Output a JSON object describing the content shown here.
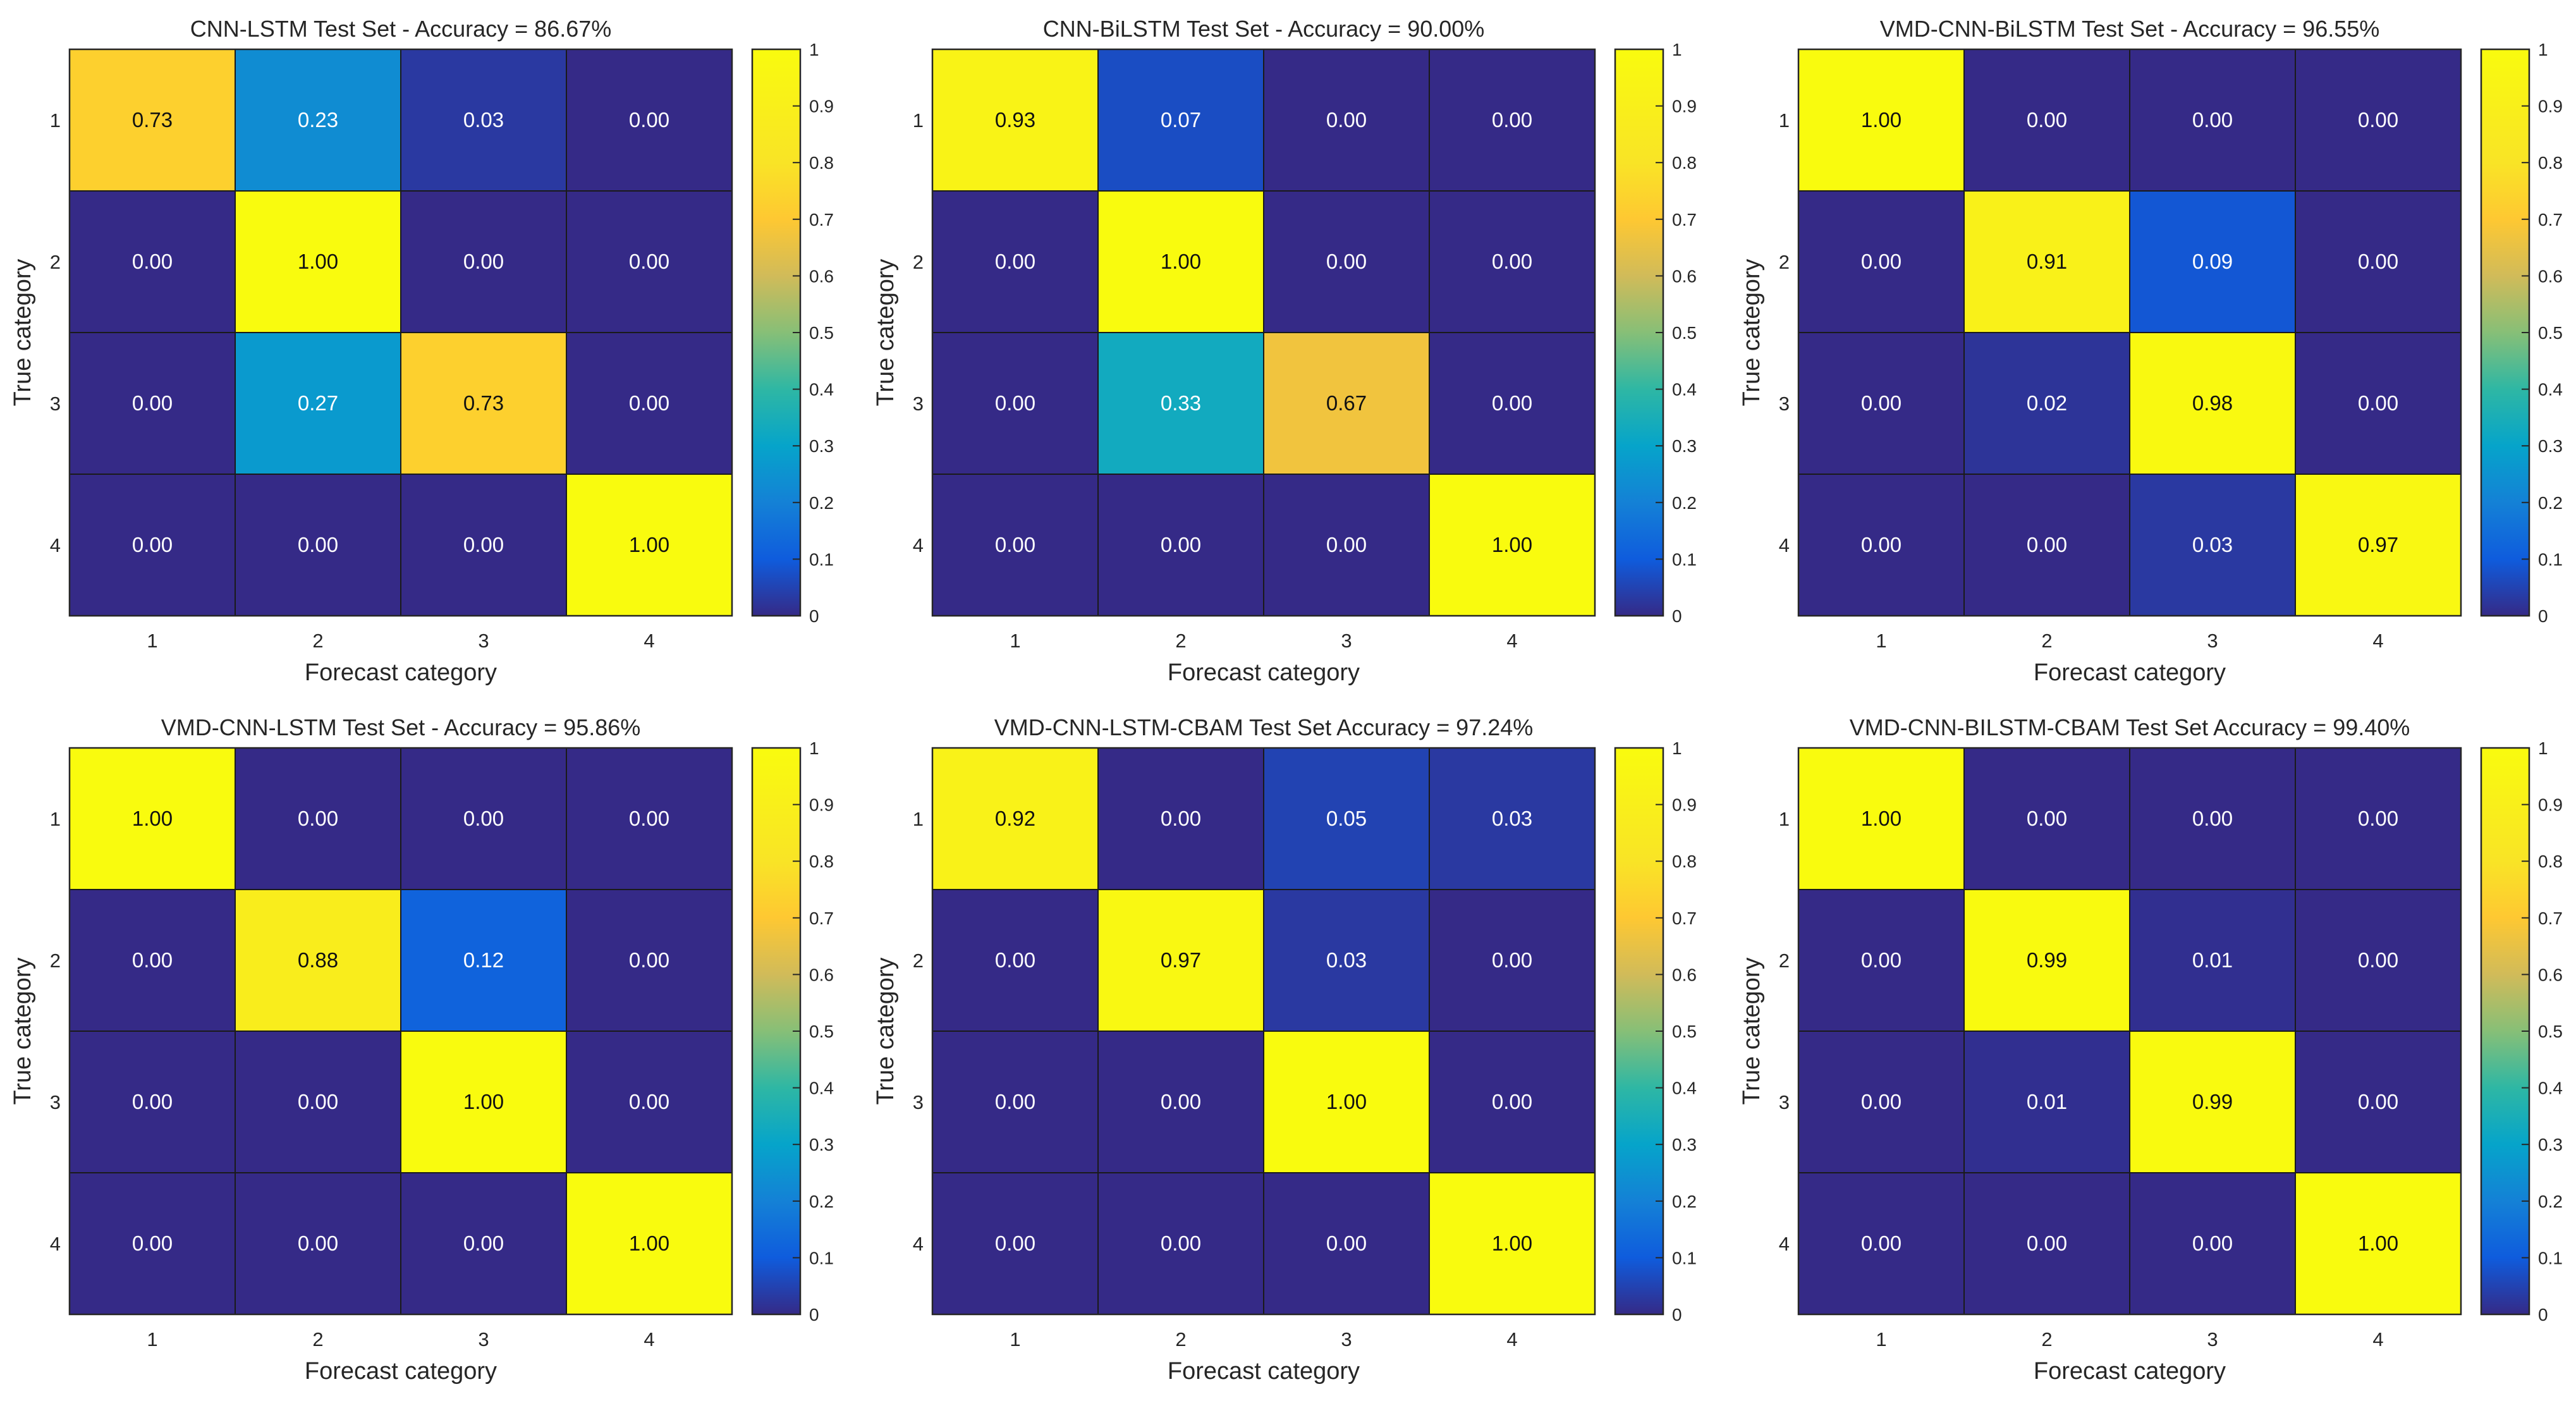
{
  "chart_data": [
    {
      "type": "heatmap",
      "title": "CNN-LSTM Test Set - Accuracy = 86.67%",
      "xlabel": "Forecast category",
      "ylabel": "True category",
      "x_categories": [
        "1",
        "2",
        "3",
        "4"
      ],
      "y_categories": [
        "1",
        "2",
        "3",
        "4"
      ],
      "values": [
        [
          0.73,
          0.23,
          0.03,
          0.0
        ],
        [
          0.0,
          1.0,
          0.0,
          0.0
        ],
        [
          0.0,
          0.27,
          0.73,
          0.0
        ],
        [
          0.0,
          0.0,
          0.0,
          1.0
        ]
      ],
      "colorbar": {
        "range": [
          0,
          1
        ],
        "ticks": [
          "0",
          "0.1",
          "0.2",
          "0.3",
          "0.4",
          "0.5",
          "0.6",
          "0.7",
          "0.8",
          "0.9",
          "1"
        ]
      }
    },
    {
      "type": "heatmap",
      "title": "CNN-BiLSTM Test Set - Accuracy = 90.00%",
      "xlabel": "Forecast category",
      "ylabel": "True category",
      "x_categories": [
        "1",
        "2",
        "3",
        "4"
      ],
      "y_categories": [
        "1",
        "2",
        "3",
        "4"
      ],
      "values": [
        [
          0.93,
          0.07,
          0.0,
          0.0
        ],
        [
          0.0,
          1.0,
          0.0,
          0.0
        ],
        [
          0.0,
          0.33,
          0.67,
          0.0
        ],
        [
          0.0,
          0.0,
          0.0,
          1.0
        ]
      ],
      "colorbar": {
        "range": [
          0,
          1
        ],
        "ticks": [
          "0",
          "0.1",
          "0.2",
          "0.3",
          "0.4",
          "0.5",
          "0.6",
          "0.7",
          "0.8",
          "0.9",
          "1"
        ]
      }
    },
    {
      "type": "heatmap",
      "title": "VMD-CNN-BiLSTM Test Set - Accuracy = 96.55%",
      "xlabel": "Forecast category",
      "ylabel": "True category",
      "x_categories": [
        "1",
        "2",
        "3",
        "4"
      ],
      "y_categories": [
        "1",
        "2",
        "3",
        "4"
      ],
      "values": [
        [
          1.0,
          0.0,
          0.0,
          0.0
        ],
        [
          0.0,
          0.91,
          0.09,
          0.0
        ],
        [
          0.0,
          0.02,
          0.98,
          0.0
        ],
        [
          0.0,
          0.0,
          0.03,
          0.97
        ]
      ],
      "colorbar": {
        "range": [
          0,
          1
        ],
        "ticks": [
          "0",
          "0.1",
          "0.2",
          "0.3",
          "0.4",
          "0.5",
          "0.6",
          "0.7",
          "0.8",
          "0.9",
          "1"
        ]
      }
    },
    {
      "type": "heatmap",
      "title": "VMD-CNN-LSTM Test Set - Accuracy = 95.86%",
      "xlabel": "Forecast category",
      "ylabel": "True category",
      "x_categories": [
        "1",
        "2",
        "3",
        "4"
      ],
      "y_categories": [
        "1",
        "2",
        "3",
        "4"
      ],
      "values": [
        [
          1.0,
          0.0,
          0.0,
          0.0
        ],
        [
          0.0,
          0.88,
          0.12,
          0.0
        ],
        [
          0.0,
          0.0,
          1.0,
          0.0
        ],
        [
          0.0,
          0.0,
          0.0,
          1.0
        ]
      ],
      "colorbar": {
        "range": [
          0,
          1
        ],
        "ticks": [
          "0",
          "0.1",
          "0.2",
          "0.3",
          "0.4",
          "0.5",
          "0.6",
          "0.7",
          "0.8",
          "0.9",
          "1"
        ]
      }
    },
    {
      "type": "heatmap",
      "title": "VMD-CNN-LSTM-CBAM Test Set Accuracy = 97.24%",
      "xlabel": "Forecast category",
      "ylabel": "True category",
      "x_categories": [
        "1",
        "2",
        "3",
        "4"
      ],
      "y_categories": [
        "1",
        "2",
        "3",
        "4"
      ],
      "values": [
        [
          0.92,
          0.0,
          0.05,
          0.03
        ],
        [
          0.0,
          0.97,
          0.03,
          0.0
        ],
        [
          0.0,
          0.0,
          1.0,
          0.0
        ],
        [
          0.0,
          0.0,
          0.0,
          1.0
        ]
      ],
      "colorbar": {
        "range": [
          0,
          1
        ],
        "ticks": [
          "0",
          "0.1",
          "0.2",
          "0.3",
          "0.4",
          "0.5",
          "0.6",
          "0.7",
          "0.8",
          "0.9",
          "1"
        ]
      }
    },
    {
      "type": "heatmap",
      "title": "VMD-CNN-BILSTM-CBAM Test Set Accuracy = 99.40%",
      "xlabel": "Forecast category",
      "ylabel": "True category",
      "x_categories": [
        "1",
        "2",
        "3",
        "4"
      ],
      "y_categories": [
        "1",
        "2",
        "3",
        "4"
      ],
      "values": [
        [
          1.0,
          0.0,
          0.0,
          0.0
        ],
        [
          0.0,
          0.99,
          0.01,
          0.0
        ],
        [
          0.0,
          0.01,
          0.99,
          0.0
        ],
        [
          0.0,
          0.0,
          0.0,
          1.0
        ]
      ],
      "colorbar": {
        "range": [
          0,
          1
        ],
        "ticks": [
          "0",
          "0.1",
          "0.2",
          "0.3",
          "0.4",
          "0.5",
          "0.6",
          "0.7",
          "0.8",
          "0.9",
          "1"
        ]
      }
    }
  ]
}
